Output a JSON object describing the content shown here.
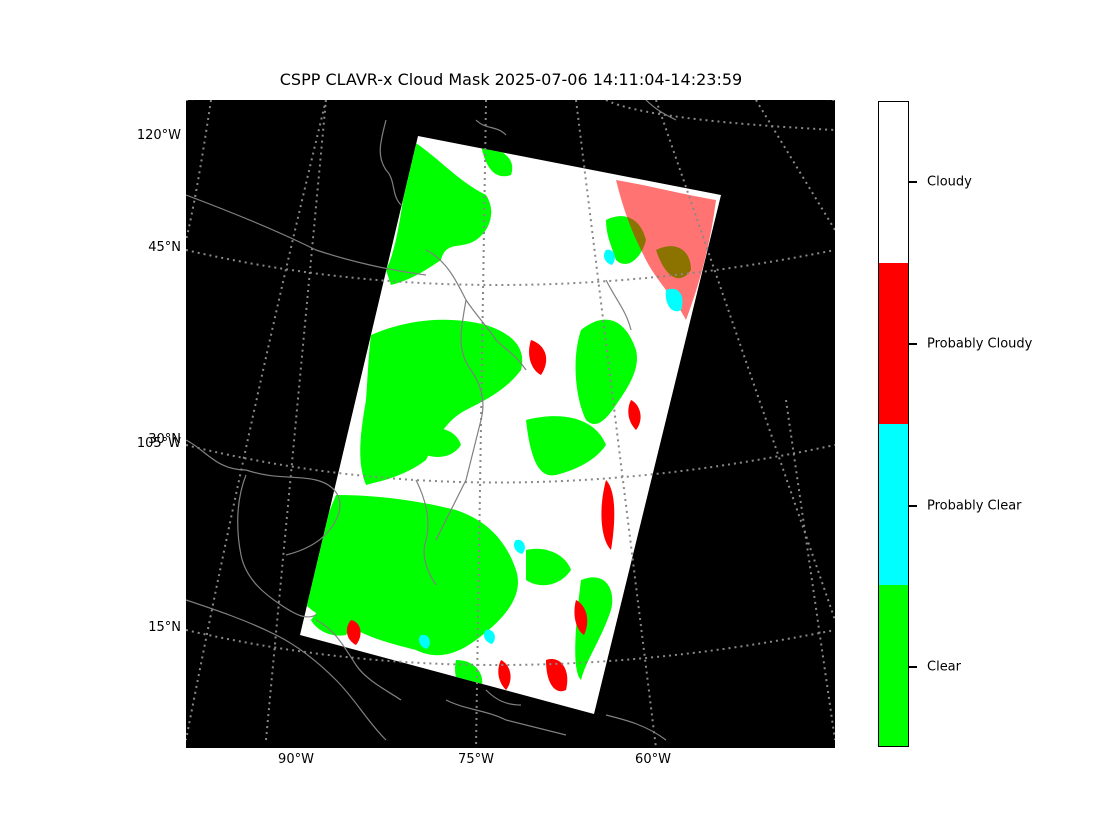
{
  "title": "CSPP CLAVR-x Cloud Mask 2025-07-06 14:11:04-14:23:59",
  "map": {
    "background": "#000000",
    "grid_color": "#888888",
    "coast_color": "#808080",
    "lat_labels": [
      "120°W",
      "45°N",
      "30°N",
      "105°W",
      "15°N"
    ],
    "lon_labels": [
      "90°W",
      "75°W",
      "60°W"
    ]
  },
  "legend": {
    "categories": [
      {
        "label": "Cloudy",
        "color": "#ffffff"
      },
      {
        "label": "Probably Cloudy",
        "color": "#ff0000"
      },
      {
        "label": "Probably Clear",
        "color": "#00ffff"
      },
      {
        "label": "Clear",
        "color": "#00ff00"
      }
    ]
  }
}
